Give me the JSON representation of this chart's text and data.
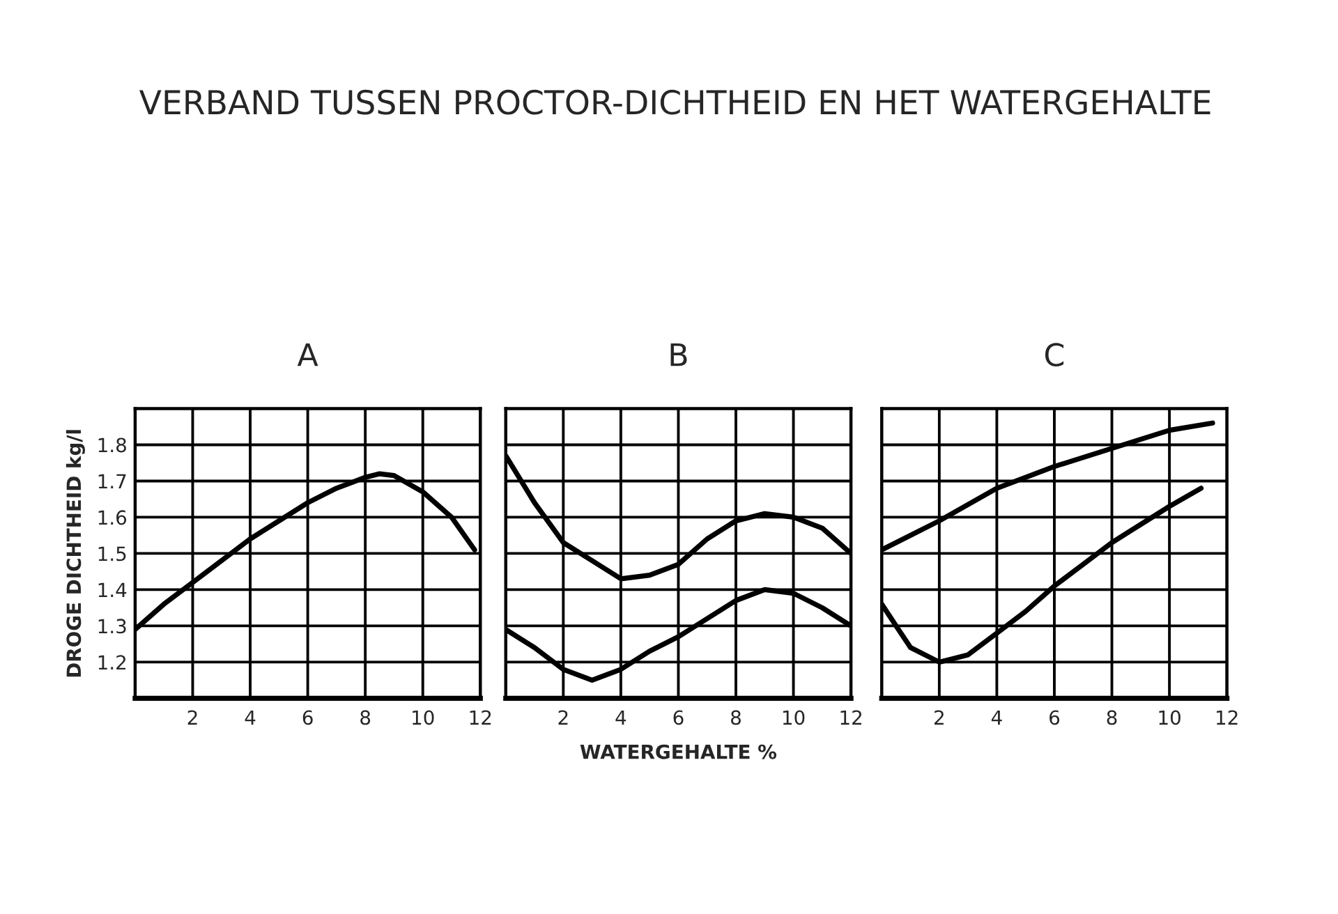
{
  "chart_data": [
    {
      "type": "line",
      "title": "A",
      "annotations": [
        "VERBAND TUSSEN PROCTOR-DICHTHEID EN HET WATERGEHALTE"
      ],
      "ylabel": "DROGE DICHTHEID kg/l",
      "xlim": [
        0,
        12
      ],
      "ylim": [
        1.1,
        1.9
      ],
      "xticks": [
        2,
        4,
        6,
        8,
        10,
        12
      ],
      "yticks": [
        1.2,
        1.3,
        1.4,
        1.5,
        1.6,
        1.7,
        1.8
      ],
      "grid": true,
      "series": [
        {
          "color": "#000000",
          "x": [
            0,
            1,
            2,
            3,
            4,
            5,
            6,
            7,
            8,
            8.5,
            9,
            10,
            11,
            11.8
          ],
          "values": [
            1.29,
            1.36,
            1.42,
            1.48,
            1.54,
            1.59,
            1.64,
            1.68,
            1.71,
            1.72,
            1.715,
            1.67,
            1.6,
            1.51
          ]
        }
      ]
    },
    {
      "type": "line",
      "title": "B",
      "xlabel": "WATERGEHALTE %",
      "xlim": [
        0,
        12
      ],
      "ylim": [
        1.1,
        1.9
      ],
      "xticks": [
        2,
        4,
        6,
        8,
        10,
        12
      ],
      "yticks": [
        {
          "value": 1.2,
          "label": null
        },
        {
          "value": 1.3,
          "label": null
        },
        {
          "value": 1.4,
          "label": null
        },
        {
          "value": 1.5,
          "label": null
        },
        {
          "value": 1.6,
          "label": null
        },
        {
          "value": 1.7,
          "label": null
        },
        {
          "value": 1.8,
          "label": null
        }
      ],
      "grid": true,
      "tick_labels": "x",
      "series": [
        {
          "color": "#000000",
          "x": [
            0,
            1,
            2,
            3,
            4,
            5,
            6,
            7,
            8,
            9,
            10,
            11,
            12
          ],
          "values": [
            1.77,
            1.64,
            1.53,
            1.48,
            1.43,
            1.44,
            1.47,
            1.54,
            1.59,
            1.61,
            1.6,
            1.57,
            1.5
          ]
        },
        {
          "color": "#000000",
          "x": [
            0,
            1,
            2,
            3,
            4,
            5,
            6,
            7,
            8,
            9,
            10,
            11,
            12
          ],
          "values": [
            1.29,
            1.24,
            1.18,
            1.15,
            1.18,
            1.23,
            1.27,
            1.32,
            1.37,
            1.4,
            1.39,
            1.35,
            1.3
          ]
        }
      ]
    },
    {
      "type": "line",
      "title": "C",
      "xlim": [
        0,
        12
      ],
      "ylim": [
        1.1,
        1.9
      ],
      "xticks": [
        2,
        4,
        6,
        8,
        10,
        12
      ],
      "yticks": [
        {
          "value": 1.2,
          "label": null
        },
        {
          "value": 1.3,
          "label": null
        },
        {
          "value": 1.4,
          "label": null
        },
        {
          "value": 1.5,
          "label": null
        },
        {
          "value": 1.6,
          "label": null
        },
        {
          "value": 1.7,
          "label": null
        },
        {
          "value": 1.8,
          "label": null
        }
      ],
      "grid": true,
      "tick_labels": "x",
      "series": [
        {
          "color": "#000000",
          "x": [
            0,
            2,
            4,
            6,
            8,
            10,
            11.5
          ],
          "values": [
            1.51,
            1.59,
            1.68,
            1.74,
            1.79,
            1.84,
            1.86
          ]
        },
        {
          "color": "#000000",
          "x": [
            0,
            0.5,
            1,
            2,
            3,
            4,
            5,
            6,
            7,
            8,
            9,
            10,
            11.1
          ],
          "values": [
            1.36,
            1.3,
            1.24,
            1.2,
            1.22,
            1.28,
            1.34,
            1.41,
            1.47,
            1.53,
            1.58,
            1.63,
            1.68
          ]
        }
      ]
    }
  ]
}
